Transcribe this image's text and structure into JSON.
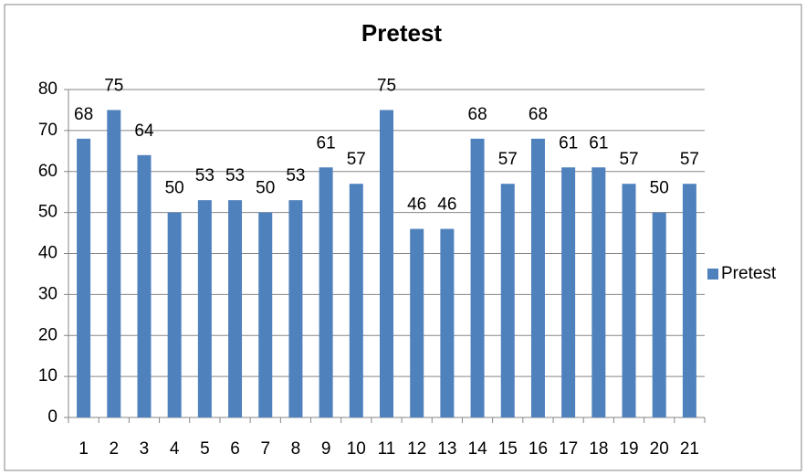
{
  "chart_data": {
    "type": "bar",
    "title": "Pretest",
    "categories": [
      "1",
      "2",
      "3",
      "4",
      "5",
      "6",
      "7",
      "8",
      "9",
      "10",
      "11",
      "12",
      "13",
      "14",
      "15",
      "16",
      "17",
      "18",
      "19",
      "20",
      "21"
    ],
    "series": [
      {
        "name": "Pretest",
        "color": "#4f81bd",
        "values": [
          68,
          75,
          64,
          50,
          53,
          53,
          50,
          53,
          61,
          57,
          75,
          46,
          46,
          68,
          57,
          68,
          61,
          61,
          57,
          50,
          57
        ]
      }
    ],
    "ylim": [
      0,
      80
    ],
    "yticks": [
      0,
      10,
      20,
      30,
      40,
      50,
      60,
      70,
      80
    ],
    "grid": true,
    "legend": "right"
  }
}
